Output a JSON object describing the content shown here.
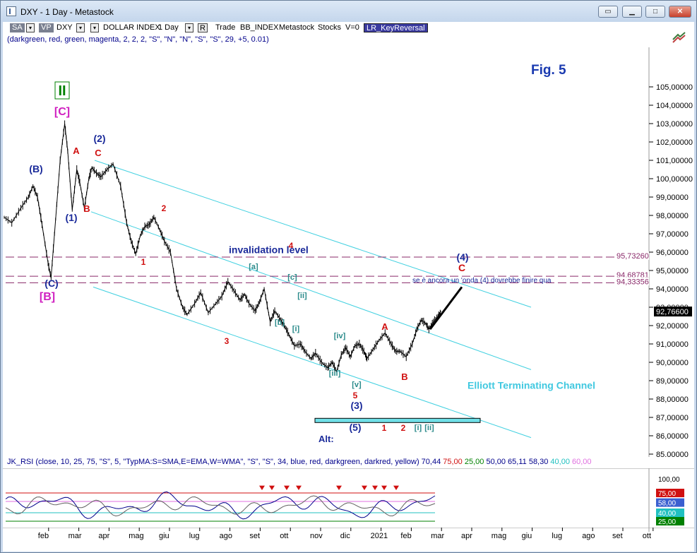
{
  "window": {
    "title": "DXY - 1 Day - Metastock"
  },
  "toolbar": {
    "sa": "SA",
    "vp": "VP",
    "symbol": "DXY",
    "description": "DOLLAR INDEX",
    "period": "1 Day",
    "r": "R",
    "trade": "Trade",
    "bb": "BB_INDEX",
    "source": "Metastock",
    "stocks": "Stocks",
    "v": "V=0",
    "indicator": "LR_KeyReversal"
  },
  "params": "(darkgreen, red, green, magenta, 2, 2, 2, \"S\", \"N\", \"N\", \"S\", \"S\", 29, +5, 0.01)",
  "fig": "Fig. 5",
  "chart_data": {
    "type": "line",
    "title": "DXY - 1 Day - Metastock",
    "ylim": [
      84.5,
      106
    ],
    "y_ticks": [
      "105,00000",
      "104,00000",
      "103,00000",
      "102,00000",
      "101,00000",
      "100,00000",
      "99,00000",
      "98,00000",
      "97,00000",
      "96,00000",
      "95,00000",
      "94,00000",
      "93,00000",
      "92,00000",
      "91,00000",
      "90,00000",
      "89,00000",
      "88,00000",
      "87,00000",
      "86,00000",
      "85,00000"
    ],
    "y_values": [
      105,
      104,
      103,
      102,
      101,
      100,
      99,
      98,
      97,
      96,
      95,
      94,
      93,
      92,
      91,
      90,
      89,
      88,
      87,
      86,
      85
    ],
    "x_ticks": [
      "feb",
      "mar",
      "apr",
      "mag",
      "giu",
      "lug",
      "ago",
      "set",
      "ott",
      "nov",
      "dic",
      "2021",
      "feb",
      "mar",
      "apr",
      "mag",
      "giu",
      "lug",
      "ago",
      "set",
      "ott"
    ],
    "x_tick_months": [
      1,
      2,
      3,
      4,
      5,
      6,
      7,
      8,
      9,
      10,
      11,
      12,
      13,
      14,
      15,
      16,
      17,
      18,
      19,
      20,
      21
    ],
    "series": [
      {
        "x": [
          0.0,
          0.25,
          0.55,
          0.8,
          0.95,
          1.1,
          1.25,
          1.45,
          1.55,
          1.7,
          1.85,
          2.0,
          2.1,
          2.25,
          2.4,
          2.5,
          2.65,
          2.8,
          2.9,
          3.05,
          3.2,
          3.4,
          3.6,
          3.85,
          4.05,
          4.2,
          4.35,
          4.5,
          4.65,
          4.8,
          4.95,
          5.15,
          5.3,
          5.5,
          5.7,
          5.9,
          6.05,
          6.3,
          6.5,
          6.75,
          7.0,
          7.2,
          7.4,
          7.6,
          7.8,
          7.95,
          8.1,
          8.3,
          8.45,
          8.6,
          8.8,
          8.95,
          9.15,
          9.3,
          9.45,
          9.6,
          9.8,
          9.95,
          10.15,
          10.3,
          10.5,
          10.7,
          10.85,
          11.0,
          11.15,
          11.3,
          11.45,
          11.6,
          11.75,
          11.9,
          12.0,
          12.2,
          12.4,
          12.6,
          12.8,
          12.95,
          13.1,
          13.3,
          13.5,
          13.65,
          13.8,
          13.95,
          14.05,
          14.2,
          14.35,
          14.45
        ],
        "values": [
          97.9,
          97.6,
          98.4,
          99.0,
          99.6,
          99.0,
          97.5,
          95.4,
          94.6,
          97.8,
          101.0,
          103.0,
          101.5,
          98.3,
          100.5,
          99.8,
          98.4,
          100.0,
          100.6,
          100.3,
          100.1,
          100.5,
          100.8,
          99.6,
          97.6,
          96.6,
          95.9,
          96.9,
          97.4,
          97.5,
          97.9,
          97.2,
          96.6,
          96.0,
          94.0,
          93.0,
          92.6,
          93.2,
          93.8,
          92.7,
          93.2,
          93.6,
          94.4,
          93.9,
          93.4,
          93.7,
          93.2,
          92.8,
          93.3,
          94.0,
          92.2,
          92.8,
          92.3,
          91.9,
          91.4,
          90.9,
          91.0,
          90.6,
          90.2,
          90.5,
          90.0,
          89.7,
          90.0,
          89.5,
          90.4,
          90.8,
          90.3,
          90.9,
          91.0,
          90.6,
          90.2,
          90.7,
          91.2,
          91.6,
          91.0,
          90.6,
          90.6,
          90.3,
          91.0,
          91.8,
          92.3,
          92.1,
          91.8,
          92.2,
          92.5,
          92.8
        ]
      }
    ],
    "levels": [
      {
        "label": "95,73260",
        "value": 95.7326
      },
      {
        "label": "94,68781",
        "value": 94.68781
      },
      {
        "label": "94,33356",
        "value": 94.33356
      }
    ],
    "last_price": {
      "label": "92,76600",
      "value": 92.766
    },
    "annotations": {
      "invalidation": "invalidation level",
      "note": "se è ancora un 'onda (4) dovrebbe finire qua",
      "channel": "Elliott Terminating Channel",
      "alt": "Alt:"
    },
    "waves": [
      {
        "label": "II",
        "color": "#008000"
      },
      {
        "label": "[C]",
        "color": "#d020c0"
      },
      {
        "label": "[B]",
        "color": "#d020c0"
      },
      {
        "label": "(C)",
        "color": "#1a2a9a"
      },
      {
        "label": "(B)",
        "color": "#1a2a9a"
      },
      {
        "label": "(1)",
        "color": "#1a2a9a"
      },
      {
        "label": "(2)",
        "color": "#1a2a9a"
      },
      {
        "label": "(3)",
        "color": "#1a2a9a"
      },
      {
        "label": "(4)",
        "color": "#1a2a9a"
      },
      {
        "label": "(5)",
        "color": "#1a2a9a"
      },
      {
        "label": "A",
        "color": "#d01010"
      },
      {
        "label": "B",
        "color": "#d01010"
      },
      {
        "label": "C",
        "color": "#d01010"
      },
      {
        "label": "1",
        "color": "#d01010"
      },
      {
        "label": "2",
        "color": "#d01010"
      },
      {
        "label": "3",
        "color": "#d01010"
      },
      {
        "label": "4",
        "color": "#d01010"
      },
      {
        "label": "5",
        "color": "#d01010"
      },
      {
        "label": "[a]",
        "color": "#2a8a8a"
      },
      {
        "label": "[b]",
        "color": "#2a8a8a"
      },
      {
        "label": "[c]",
        "color": "#2a8a8a"
      },
      {
        "label": "[i]",
        "color": "#2a8a8a"
      },
      {
        "label": "[ii]",
        "color": "#2a8a8a"
      },
      {
        "label": "[iii]",
        "color": "#2a8a8a"
      },
      {
        "label": "[iv]",
        "color": "#2a8a8a"
      },
      {
        "label": "[v]",
        "color": "#2a8a8a"
      }
    ]
  },
  "rsi": {
    "header_params": "JK_RSI   (close,  10,  25, 75,  \"S\",  5,  \"TypMA:S=SMA,E=EMA,W=WMA\",  \"S\",  \"S\",  34,  blue,  red,  darkgreen,  darkred,  yellow)",
    "readouts": [
      {
        "text": "70,44",
        "color": "#00008b"
      },
      {
        "text": "75,00",
        "color": "#d01010"
      },
      {
        "text": "25,00",
        "color": "#008000"
      },
      {
        "text": "50,00",
        "color": "#00008b"
      },
      {
        "text": "65,11",
        "color": "#00008b"
      },
      {
        "text": "58,30",
        "color": "#00008b"
      },
      {
        "text": "40,00",
        "color": "#20c0c0"
      },
      {
        "text": "60,00",
        "color": "#e070e0"
      }
    ],
    "y_ticks": [
      "100,00",
      "75,00",
      "58,00",
      "40,00",
      "25,00"
    ]
  },
  "colors": {
    "channel": "#40d0e0",
    "price": "#000000",
    "level_line": "#8a2a6a",
    "axis_bg": "#ffffff"
  }
}
